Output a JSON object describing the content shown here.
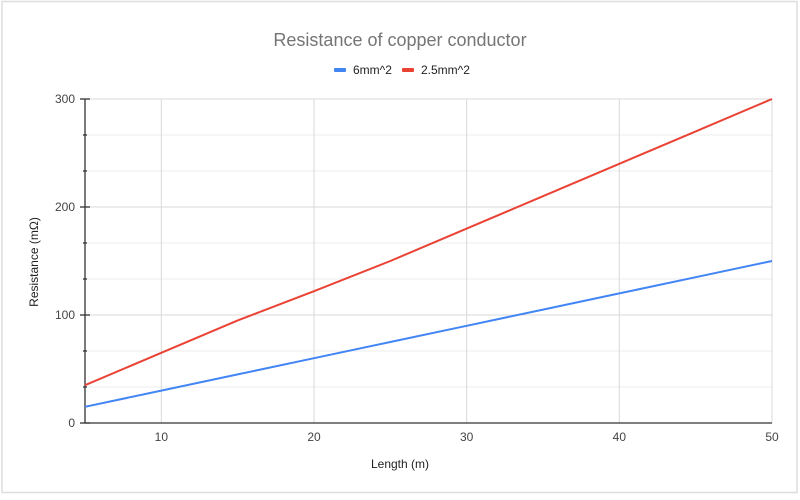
{
  "chart_data": {
    "type": "line",
    "title": "Resistance of copper conductor",
    "xlabel": "Length (m)",
    "ylabel": "Resistance (mΩ)",
    "x": [
      5,
      10,
      15,
      20,
      25,
      30,
      35,
      40,
      45,
      50
    ],
    "series": [
      {
        "name": "6mm^2",
        "color": "#4285F4",
        "values": [
          15,
          30,
          45,
          60,
          75,
          90,
          105,
          120,
          135,
          150
        ]
      },
      {
        "name": "2.5mm^2",
        "color": "#EA4335",
        "values": [
          35,
          65,
          95,
          122,
          150,
          180,
          210,
          240,
          270,
          300
        ]
      }
    ],
    "xlim": [
      5,
      50
    ],
    "ylim": [
      0,
      300
    ],
    "x_ticks": [
      10,
      20,
      30,
      40,
      50
    ],
    "y_ticks": [
      0,
      100,
      200,
      300
    ],
    "y_minor_ticks": [
      33.33,
      66.67,
      133.33,
      166.67,
      233.33,
      266.67
    ],
    "grid": true,
    "legend_position": "top"
  },
  "labels": {
    "title": "Resistance of copper conductor",
    "xlabel": "Length (m)",
    "ylabel": "Resistance (mΩ)",
    "legend": [
      "6mm^2",
      "2.5mm^2"
    ],
    "x_ticks": [
      "10",
      "20",
      "30",
      "40",
      "50"
    ],
    "y_ticks": [
      "0",
      "100",
      "200",
      "300"
    ]
  },
  "colors": {
    "series_1": "#4285F4",
    "series_2": "#EA4335",
    "grid": "#d9d9d9",
    "axis": "#333333",
    "frame": "#dddddd"
  }
}
